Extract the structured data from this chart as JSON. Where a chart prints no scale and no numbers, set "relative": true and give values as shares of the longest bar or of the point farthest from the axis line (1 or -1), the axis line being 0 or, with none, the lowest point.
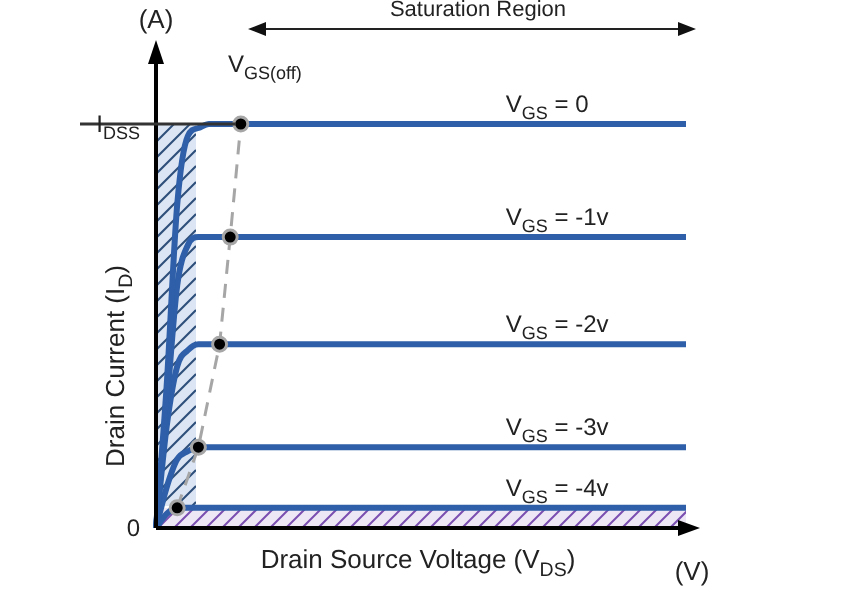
{
  "chart_data": {
    "type": "line",
    "xlabel": "Drain Source Voltage (V$_{DS}$)",
    "ylabel": "Drain Current (I$_{D}$)",
    "categories": [
      null,
      null,
      null,
      null,
      null,
      null,
      null,
      null,
      null,
      null,
      null,
      null,
      null,
      null,
      null,
      null,
      null,
      null,
      null,
      null,
      null,
      null,
      null,
      null,
      null,
      null,
      null,
      null,
      null,
      null,
      null,
      null,
      null,
      null,
      null,
      null,
      null,
      null,
      null,
      null,
      null,
      null,
      null,
      null,
      null,
      null,
      null,
      null,
      null,
      null,
      null
    ],
    "relative": true,
    "marker": "none",
    "line_style": "solid",
    "series": [
      {
        "name": "V$_{GS}$ = 0",
        "color": "#2e5fa8",
        "values": [
          0,
          0.35,
          0.8,
          0.97,
          0.99,
          1,
          1,
          1,
          1,
          1,
          1,
          1,
          1,
          1,
          1,
          1,
          1,
          1,
          1,
          1,
          1,
          1,
          1,
          1,
          1,
          1,
          1,
          1,
          1,
          1,
          1,
          1,
          1,
          1,
          1,
          1,
          1,
          1,
          1,
          1,
          1,
          1,
          1,
          1,
          1,
          1,
          1,
          1,
          1,
          1,
          1
        ]
      },
      {
        "name": "V$_{GS}$ = -1v",
        "color": "#2e5fa8",
        "values": [
          0,
          0.3,
          0.6,
          0.7,
          0.72,
          0.72,
          0.72,
          0.72,
          0.72,
          0.72,
          0.72,
          0.72,
          0.72,
          0.72,
          0.72,
          0.72,
          0.72,
          0.72,
          0.72,
          0.72,
          0.72,
          0.72,
          0.72,
          0.72,
          0.72,
          0.72,
          0.72,
          0.72,
          0.72,
          0.72,
          0.72,
          0.72,
          0.72,
          0.72,
          0.72,
          0.72,
          0.72,
          0.72,
          0.72,
          0.72,
          0.72,
          0.72,
          0.72,
          0.72,
          0.72,
          0.72,
          0.72,
          0.72,
          0.72,
          0.72,
          0.72
        ]
      },
      {
        "name": "V$_{GS}$ = -2v",
        "color": "#2e5fa8",
        "values": [
          0,
          0.25,
          0.4,
          0.44,
          0.455,
          0.455,
          0.455,
          0.455,
          0.455,
          0.455,
          0.455,
          0.455,
          0.455,
          0.455,
          0.455,
          0.455,
          0.455,
          0.455,
          0.455,
          0.455,
          0.455,
          0.455,
          0.455,
          0.455,
          0.455,
          0.455,
          0.455,
          0.455,
          0.455,
          0.455,
          0.455,
          0.455,
          0.455,
          0.455,
          0.455,
          0.455,
          0.455,
          0.455,
          0.455,
          0.455,
          0.455,
          0.455,
          0.455,
          0.455,
          0.455,
          0.455,
          0.455,
          0.455,
          0.455,
          0.455,
          0.455
        ]
      },
      {
        "name": "V$_{GS}$ = -3v",
        "color": "#2e5fa8",
        "values": [
          0,
          0.1,
          0.17,
          0.19,
          0.2,
          0.2,
          0.2,
          0.2,
          0.2,
          0.2,
          0.2,
          0.2,
          0.2,
          0.2,
          0.2,
          0.2,
          0.2,
          0.2,
          0.2,
          0.2,
          0.2,
          0.2,
          0.2,
          0.2,
          0.2,
          0.2,
          0.2,
          0.2,
          0.2,
          0.2,
          0.2,
          0.2,
          0.2,
          0.2,
          0.2,
          0.2,
          0.2,
          0.2,
          0.2,
          0.2,
          0.2,
          0.2,
          0.2,
          0.2,
          0.2,
          0.2,
          0.2,
          0.2,
          0.2,
          0.2,
          0.2
        ]
      },
      {
        "name": "V$_{GS}$ = -4v",
        "color": "#2e5fa8",
        "values": [
          0,
          0.035,
          0.05,
          0.05,
          0.05,
          0.05,
          0.05,
          0.05,
          0.05,
          0.05,
          0.05,
          0.05,
          0.05,
          0.05,
          0.05,
          0.05,
          0.05,
          0.05,
          0.05,
          0.05,
          0.05,
          0.05,
          0.05,
          0.05,
          0.05,
          0.05,
          0.05,
          0.05,
          0.05,
          0.05,
          0.05,
          0.05,
          0.05,
          0.05,
          0.05,
          0.05,
          0.05,
          0.05,
          0.05,
          0.05,
          0.05,
          0.05,
          0.05,
          0.05,
          0.05,
          0.05,
          0.05,
          0.05,
          0.05,
          0.05,
          0.05
        ]
      },
      {
        "name": "V$_{GS(off)}$",
        "line_style": "dashed",
        "marker": "circle",
        "color": "#a6a6a6",
        "values": [
          null,
          null,
          0.05,
          null,
          0.2,
          null,
          0.455,
          0.72,
          1,
          null,
          null,
          null,
          null,
          null,
          null,
          null,
          null,
          null,
          null,
          null,
          null,
          null,
          null,
          null,
          null,
          null,
          null,
          null,
          null,
          null,
          null,
          null,
          null,
          null,
          null,
          null,
          null,
          null,
          null,
          null,
          null,
          null,
          null,
          null,
          null,
          null,
          null,
          null,
          null,
          null,
          null
        ]
      }
    ],
    "annotations": [
      "(A)",
      "(V)",
      "Saturation Region",
      "I$_{DSS}$",
      "0"
    ]
  }
}
